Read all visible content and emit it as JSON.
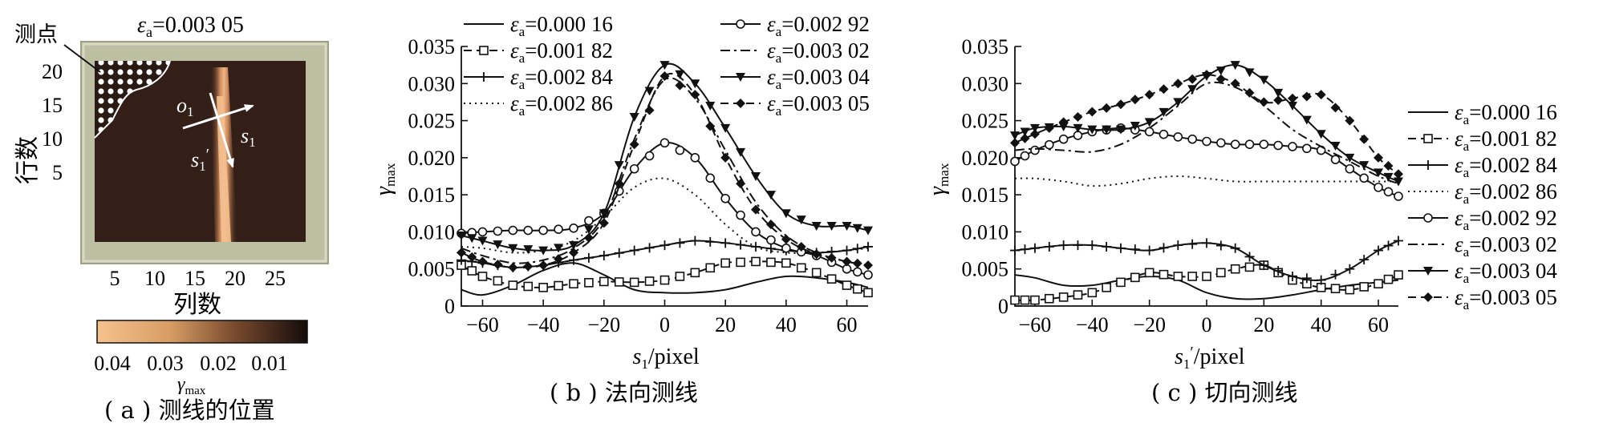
{
  "panel_a": {
    "title_eps": "ε",
    "title_sub": "a",
    "title_value": "=0.003 05",
    "marker_label": "测点",
    "origin_label": "o",
    "origin_sub": "1",
    "axis_s1": "s",
    "axis_s1_sub": "1",
    "axis_s1p": "s",
    "axis_s1p_sub": "1",
    "axis_s1p_prime": "′",
    "ylabel": "行数",
    "xlabel": "列数",
    "yticks": [
      "5",
      "10",
      "15",
      "20"
    ],
    "xticks": [
      "5",
      "10",
      "15",
      "20",
      "25"
    ],
    "colorbar_ticks": [
      "0.04",
      "0.03",
      "0.02",
      "0.01"
    ],
    "colorbar_label": "γ",
    "colorbar_label_sub": "max",
    "caption": "( a ) 测线的位置"
  },
  "captions": {
    "b": "( b ) 法向测线",
    "c": "( c ) 切向测线"
  },
  "legend_labels": {
    "eps": "ε",
    "sub": "a",
    "values": [
      "=0.000 16",
      "=0.001 82",
      "=0.002 84",
      "=0.002 86",
      "=0.002 92",
      "=0.003 02",
      "=0.003 04",
      "=0.003 05"
    ]
  },
  "chart_data": [
    {
      "type": "line",
      "panel": "b",
      "xlabel": "s1/pixel",
      "ylabel": "γmax",
      "xlim": [
        -67,
        67
      ],
      "ylim": [
        0,
        0.035
      ],
      "xticks": [
        -60,
        -40,
        -20,
        0,
        20,
        40,
        60
      ],
      "yticks": [
        0,
        0.005,
        0.01,
        0.015,
        0.02,
        0.025,
        0.03,
        0.035
      ],
      "ytick_labels": [
        "0",
        "0.005",
        "0.010",
        "0.015",
        "0.020",
        "0.025",
        "0.030",
        "0.035"
      ],
      "xtick_labels": [
        "−60",
        "−40",
        "−20",
        "0",
        "20",
        "40",
        "60"
      ],
      "legend": "top, two columns",
      "series": [
        {
          "name": "εa=0.000 16",
          "style": "solid",
          "marker": "none",
          "x": [
            -67,
            -60,
            -50,
            -40,
            -30,
            -20,
            -10,
            0,
            10,
            20,
            30,
            40,
            50,
            60,
            67
          ],
          "y": [
            0.0022,
            0.0015,
            0.0028,
            0.0048,
            0.0058,
            0.0042,
            0.0022,
            0.0018,
            0.0018,
            0.0022,
            0.0032,
            0.004,
            0.0038,
            0.0032,
            0.0025
          ]
        },
        {
          "name": "εa=0.001 82",
          "style": "dashed",
          "marker": "square",
          "x": [
            -67,
            -60,
            -50,
            -40,
            -30,
            -20,
            -10,
            0,
            10,
            20,
            30,
            40,
            50,
            60,
            67
          ],
          "y": [
            0.0055,
            0.004,
            0.0028,
            0.0025,
            0.003,
            0.0033,
            0.0032,
            0.0035,
            0.0045,
            0.0058,
            0.006,
            0.0058,
            0.0045,
            0.0028,
            0.0018
          ]
        },
        {
          "name": "εa=0.002 84",
          "style": "solid",
          "marker": "plus",
          "x": [
            -67,
            -60,
            -50,
            -40,
            -30,
            -20,
            -10,
            0,
            10,
            20,
            30,
            40,
            50,
            60,
            67
          ],
          "y": [
            0.0062,
            0.0058,
            0.0052,
            0.0055,
            0.0062,
            0.0068,
            0.0075,
            0.0082,
            0.0088,
            0.0085,
            0.008,
            0.0075,
            0.0072,
            0.0075,
            0.008
          ]
        },
        {
          "name": "εa=0.002 86",
          "style": "dotted",
          "marker": "none",
          "x": [
            -67,
            -60,
            -50,
            -40,
            -30,
            -20,
            -10,
            0,
            10,
            20,
            30,
            40,
            50,
            60,
            67
          ],
          "y": [
            0.008,
            0.0078,
            0.0072,
            0.0075,
            0.0088,
            0.012,
            0.016,
            0.0172,
            0.015,
            0.011,
            0.008,
            0.0072,
            0.0072,
            0.0075,
            0.0078
          ]
        },
        {
          "name": "εa=0.002 92",
          "style": "solid",
          "marker": "circle",
          "x": [
            -67,
            -60,
            -50,
            -40,
            -30,
            -20,
            -10,
            0,
            10,
            20,
            30,
            40,
            50,
            60,
            67
          ],
          "y": [
            0.0098,
            0.01,
            0.0102,
            0.0102,
            0.0105,
            0.0125,
            0.0185,
            0.022,
            0.02,
            0.0145,
            0.01,
            0.0078,
            0.0068,
            0.005,
            0.0042
          ]
        },
        {
          "name": "εa=0.003 02",
          "style": "dashdot",
          "marker": "none",
          "x": [
            -67,
            -60,
            -50,
            -40,
            -30,
            -20,
            -10,
            0,
            10,
            20,
            30,
            40,
            50,
            60,
            67
          ],
          "y": [
            0.0078,
            0.0068,
            0.0058,
            0.0062,
            0.0078,
            0.0118,
            0.0225,
            0.0305,
            0.028,
            0.021,
            0.014,
            0.0095,
            0.0072,
            0.006,
            0.0055
          ]
        },
        {
          "name": "εa=0.003 04",
          "style": "solid",
          "marker": "triangle-down",
          "x": [
            -67,
            -60,
            -50,
            -40,
            -30,
            -20,
            -10,
            0,
            10,
            20,
            30,
            40,
            50,
            60,
            67
          ],
          "y": [
            0.0095,
            0.0088,
            0.0078,
            0.0075,
            0.0082,
            0.0125,
            0.0255,
            0.0325,
            0.03,
            0.024,
            0.0175,
            0.0125,
            0.0108,
            0.0108,
            0.0102
          ]
        },
        {
          "name": "εa=0.003 05",
          "style": "dashed",
          "marker": "diamond",
          "x": [
            -67,
            -60,
            -50,
            -40,
            -30,
            -20,
            -10,
            0,
            10,
            20,
            30,
            40,
            50,
            60,
            67
          ],
          "y": [
            0.0072,
            0.006,
            0.0052,
            0.0055,
            0.0072,
            0.0112,
            0.0218,
            0.031,
            0.0285,
            0.02,
            0.013,
            0.009,
            0.007,
            0.006,
            0.0055
          ]
        }
      ]
    },
    {
      "type": "line",
      "panel": "c",
      "xlabel": "s1′/pixel",
      "ylabel": "γmax",
      "xlim": [
        -67,
        67
      ],
      "ylim": [
        0,
        0.035
      ],
      "xticks": [
        -60,
        -40,
        -20,
        0,
        20,
        40,
        60
      ],
      "yticks": [
        0,
        0.005,
        0.01,
        0.015,
        0.02,
        0.025,
        0.03,
        0.035
      ],
      "ytick_labels": [
        "0",
        "0.005",
        "0.010",
        "0.015",
        "0.020",
        "0.025",
        "0.030",
        "0.035"
      ],
      "xtick_labels": [
        "−60",
        "−40",
        "−20",
        "0",
        "20",
        "40",
        "60"
      ],
      "legend": "right",
      "series": [
        {
          "name": "εa=0.000 16",
          "style": "solid",
          "marker": "none",
          "x": [
            -67,
            -60,
            -50,
            -40,
            -30,
            -20,
            -10,
            0,
            10,
            20,
            30,
            40,
            50,
            60,
            67
          ],
          "y": [
            0.0042,
            0.0038,
            0.0028,
            0.0028,
            0.0035,
            0.004,
            0.0035,
            0.0018,
            0.001,
            0.001,
            0.0015,
            0.0022,
            0.0028,
            0.0032,
            0.0035
          ]
        },
        {
          "name": "εa=0.001 82",
          "style": "dashed",
          "marker": "square",
          "x": [
            -67,
            -60,
            -50,
            -40,
            -30,
            -20,
            -10,
            0,
            10,
            20,
            30,
            40,
            50,
            60,
            67
          ],
          "y": [
            0.0008,
            0.0008,
            0.0012,
            0.0018,
            0.0032,
            0.0045,
            0.004,
            0.004,
            0.005,
            0.0055,
            0.0035,
            0.0025,
            0.0022,
            0.003,
            0.0042
          ]
        },
        {
          "name": "εa=0.002 84",
          "style": "solid",
          "marker": "plus",
          "x": [
            -67,
            -60,
            -50,
            -40,
            -30,
            -20,
            -10,
            0,
            10,
            20,
            30,
            40,
            50,
            60,
            67
          ],
          "y": [
            0.0075,
            0.0078,
            0.0082,
            0.0082,
            0.0078,
            0.0075,
            0.0082,
            0.0085,
            0.0078,
            0.0055,
            0.004,
            0.0035,
            0.005,
            0.0075,
            0.0088
          ]
        },
        {
          "name": "εa=0.002 86",
          "style": "dotted",
          "marker": "none",
          "x": [
            -67,
            -60,
            -50,
            -40,
            -30,
            -20,
            -10,
            0,
            10,
            20,
            30,
            40,
            50,
            60,
            67
          ],
          "y": [
            0.0172,
            0.0172,
            0.0168,
            0.0162,
            0.0165,
            0.0172,
            0.0175,
            0.0172,
            0.0168,
            0.0168,
            0.0168,
            0.0168,
            0.0168,
            0.0168,
            0.0168
          ]
        },
        {
          "name": "εa=0.002 92",
          "style": "solid",
          "marker": "circle",
          "x": [
            -67,
            -60,
            -50,
            -40,
            -30,
            -20,
            -10,
            0,
            10,
            20,
            30,
            40,
            50,
            60,
            67
          ],
          "y": [
            0.0195,
            0.021,
            0.0225,
            0.0235,
            0.024,
            0.0235,
            0.0228,
            0.0222,
            0.0218,
            0.0218,
            0.0215,
            0.021,
            0.0185,
            0.016,
            0.0148
          ]
        },
        {
          "name": "εa=0.003 02",
          "style": "dashdot",
          "marker": "none",
          "x": [
            -67,
            -60,
            -50,
            -40,
            -30,
            -20,
            -10,
            0,
            10,
            20,
            30,
            40,
            50,
            60,
            67
          ],
          "y": [
            0.021,
            0.0212,
            0.021,
            0.0208,
            0.0218,
            0.024,
            0.027,
            0.03,
            0.0295,
            0.027,
            0.0238,
            0.0215,
            0.0195,
            0.0175,
            0.0165
          ]
        },
        {
          "name": "εa=0.003 04",
          "style": "solid",
          "marker": "triangle-down",
          "x": [
            -67,
            -60,
            -50,
            -40,
            -30,
            -20,
            -10,
            0,
            10,
            20,
            30,
            40,
            50,
            60,
            67
          ],
          "y": [
            0.023,
            0.024,
            0.0242,
            0.0238,
            0.0238,
            0.0248,
            0.0275,
            0.031,
            0.0325,
            0.0305,
            0.027,
            0.0232,
            0.02,
            0.018,
            0.0168
          ]
        },
        {
          "name": "εa=0.003 05",
          "style": "dashed",
          "marker": "diamond",
          "x": [
            -67,
            -60,
            -50,
            -40,
            -30,
            -20,
            -10,
            0,
            10,
            20,
            30,
            40,
            50,
            60,
            67
          ],
          "y": [
            0.022,
            0.0232,
            0.0248,
            0.0262,
            0.0272,
            0.0285,
            0.03,
            0.0312,
            0.03,
            0.0275,
            0.028,
            0.0285,
            0.025,
            0.02,
            0.0178
          ]
        }
      ]
    }
  ]
}
